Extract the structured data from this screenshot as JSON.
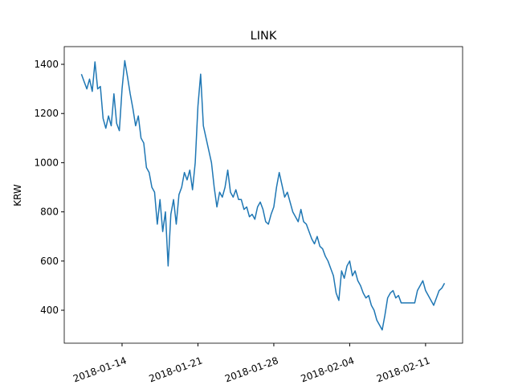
{
  "chart_data": {
    "type": "line",
    "title": "LINK",
    "y_label": "KRW",
    "x": [
      "2018-01-10 06:00",
      "2018-01-10 12:00",
      "2018-01-10 18:00",
      "2018-01-11 00:00",
      "2018-01-11 06:00",
      "2018-01-11 12:00",
      "2018-01-11 18:00",
      "2018-01-12 00:00",
      "2018-01-12 06:00",
      "2018-01-12 12:00",
      "2018-01-12 18:00",
      "2018-01-13 00:00",
      "2018-01-13 06:00",
      "2018-01-13 12:00",
      "2018-01-13 18:00",
      "2018-01-14 00:00",
      "2018-01-14 06:00",
      "2018-01-14 12:00",
      "2018-01-14 18:00",
      "2018-01-15 00:00",
      "2018-01-15 06:00",
      "2018-01-15 12:00",
      "2018-01-15 18:00",
      "2018-01-16 00:00",
      "2018-01-16 06:00",
      "2018-01-16 12:00",
      "2018-01-16 18:00",
      "2018-01-17 00:00",
      "2018-01-17 06:00",
      "2018-01-17 12:00",
      "2018-01-17 18:00",
      "2018-01-18 00:00",
      "2018-01-18 06:00",
      "2018-01-18 12:00",
      "2018-01-18 18:00",
      "2018-01-19 00:00",
      "2018-01-19 06:00",
      "2018-01-19 12:00",
      "2018-01-19 18:00",
      "2018-01-20 00:00",
      "2018-01-20 06:00",
      "2018-01-20 12:00",
      "2018-01-20 18:00",
      "2018-01-21 00:00",
      "2018-01-21 06:00",
      "2018-01-21 12:00",
      "2018-01-21 18:00",
      "2018-01-22 00:00",
      "2018-01-22 06:00",
      "2018-01-22 12:00",
      "2018-01-22 18:00",
      "2018-01-23 00:00",
      "2018-01-23 06:00",
      "2018-01-23 12:00",
      "2018-01-23 18:00",
      "2018-01-24 00:00",
      "2018-01-24 06:00",
      "2018-01-24 12:00",
      "2018-01-24 18:00",
      "2018-01-25 00:00",
      "2018-01-25 06:00",
      "2018-01-25 12:00",
      "2018-01-25 18:00",
      "2018-01-26 00:00",
      "2018-01-26 06:00",
      "2018-01-26 12:00",
      "2018-01-26 18:00",
      "2018-01-27 00:00",
      "2018-01-27 06:00",
      "2018-01-27 12:00",
      "2018-01-27 18:00",
      "2018-01-28 00:00",
      "2018-01-28 06:00",
      "2018-01-28 12:00",
      "2018-01-28 18:00",
      "2018-01-29 00:00",
      "2018-01-29 06:00",
      "2018-01-29 12:00",
      "2018-01-29 18:00",
      "2018-01-30 00:00",
      "2018-01-30 06:00",
      "2018-01-30 12:00",
      "2018-01-30 18:00",
      "2018-01-31 00:00",
      "2018-01-31 06:00",
      "2018-01-31 12:00",
      "2018-01-31 18:00",
      "2018-02-01 00:00",
      "2018-02-01 06:00",
      "2018-02-01 12:00",
      "2018-02-01 18:00",
      "2018-02-02 00:00",
      "2018-02-02 06:00",
      "2018-02-02 12:00",
      "2018-02-02 18:00",
      "2018-02-03 00:00",
      "2018-02-03 06:00",
      "2018-02-03 12:00",
      "2018-02-03 18:00",
      "2018-02-04 00:00",
      "2018-02-04 06:00",
      "2018-02-04 12:00",
      "2018-02-04 18:00",
      "2018-02-05 00:00",
      "2018-02-05 06:00",
      "2018-02-05 12:00",
      "2018-02-05 18:00",
      "2018-02-06 00:00",
      "2018-02-06 06:00",
      "2018-02-06 12:00",
      "2018-02-06 18:00",
      "2018-02-07 00:00",
      "2018-02-07 06:00",
      "2018-02-07 12:00",
      "2018-02-07 18:00",
      "2018-02-08 00:00",
      "2018-02-08 06:00",
      "2018-02-08 12:00",
      "2018-02-08 18:00",
      "2018-02-09 00:00",
      "2018-02-09 06:00",
      "2018-02-09 12:00",
      "2018-02-09 18:00",
      "2018-02-10 00:00",
      "2018-02-10 06:00",
      "2018-02-10 12:00",
      "2018-02-10 18:00",
      "2018-02-11 00:00",
      "2018-02-11 06:00",
      "2018-02-11 12:00",
      "2018-02-11 18:00",
      "2018-02-12 00:00",
      "2018-02-12 06:00",
      "2018-02-12 12:00",
      "2018-02-12 18:00"
    ],
    "series": [
      {
        "name": "LINK",
        "color": "#1f77b4",
        "values": [
          1360,
          1330,
          1300,
          1340,
          1290,
          1410,
          1300,
          1310,
          1180,
          1140,
          1190,
          1150,
          1280,
          1160,
          1130,
          1300,
          1415,
          1350,
          1280,
          1220,
          1150,
          1190,
          1100,
          1080,
          980,
          960,
          900,
          880,
          750,
          850,
          720,
          800,
          580,
          790,
          850,
          750,
          870,
          900,
          960,
          930,
          970,
          890,
          1000,
          1230,
          1360,
          1150,
          1100,
          1050,
          1000,
          900,
          820,
          880,
          860,
          900,
          970,
          880,
          860,
          890,
          850,
          850,
          810,
          820,
          780,
          790,
          770,
          820,
          840,
          810,
          760,
          750,
          790,
          820,
          900,
          960,
          910,
          860,
          880,
          840,
          800,
          780,
          760,
          810,
          760,
          750,
          720,
          690,
          670,
          700,
          660,
          650,
          620,
          600,
          570,
          540,
          470,
          440,
          560,
          530,
          580,
          600,
          540,
          560,
          520,
          500,
          470,
          450,
          460,
          420,
          400,
          360,
          340,
          320,
          380,
          450,
          470,
          480,
          450,
          460,
          430,
          430,
          430,
          430,
          430,
          430,
          480,
          500,
          520,
          480,
          460,
          440,
          420,
          450,
          480,
          490,
          510
        ]
      }
    ],
    "xlim": [
      "2018-01-08 16:00",
      "2018-02-14 10:00"
    ],
    "xticks": [
      "2018-01-14",
      "2018-01-21",
      "2018-01-28",
      "2018-02-04",
      "2018-02-11"
    ],
    "ylim": [
      266,
      1472
    ],
    "yticks": [
      400,
      600,
      800,
      1000,
      1200,
      1400
    ]
  }
}
